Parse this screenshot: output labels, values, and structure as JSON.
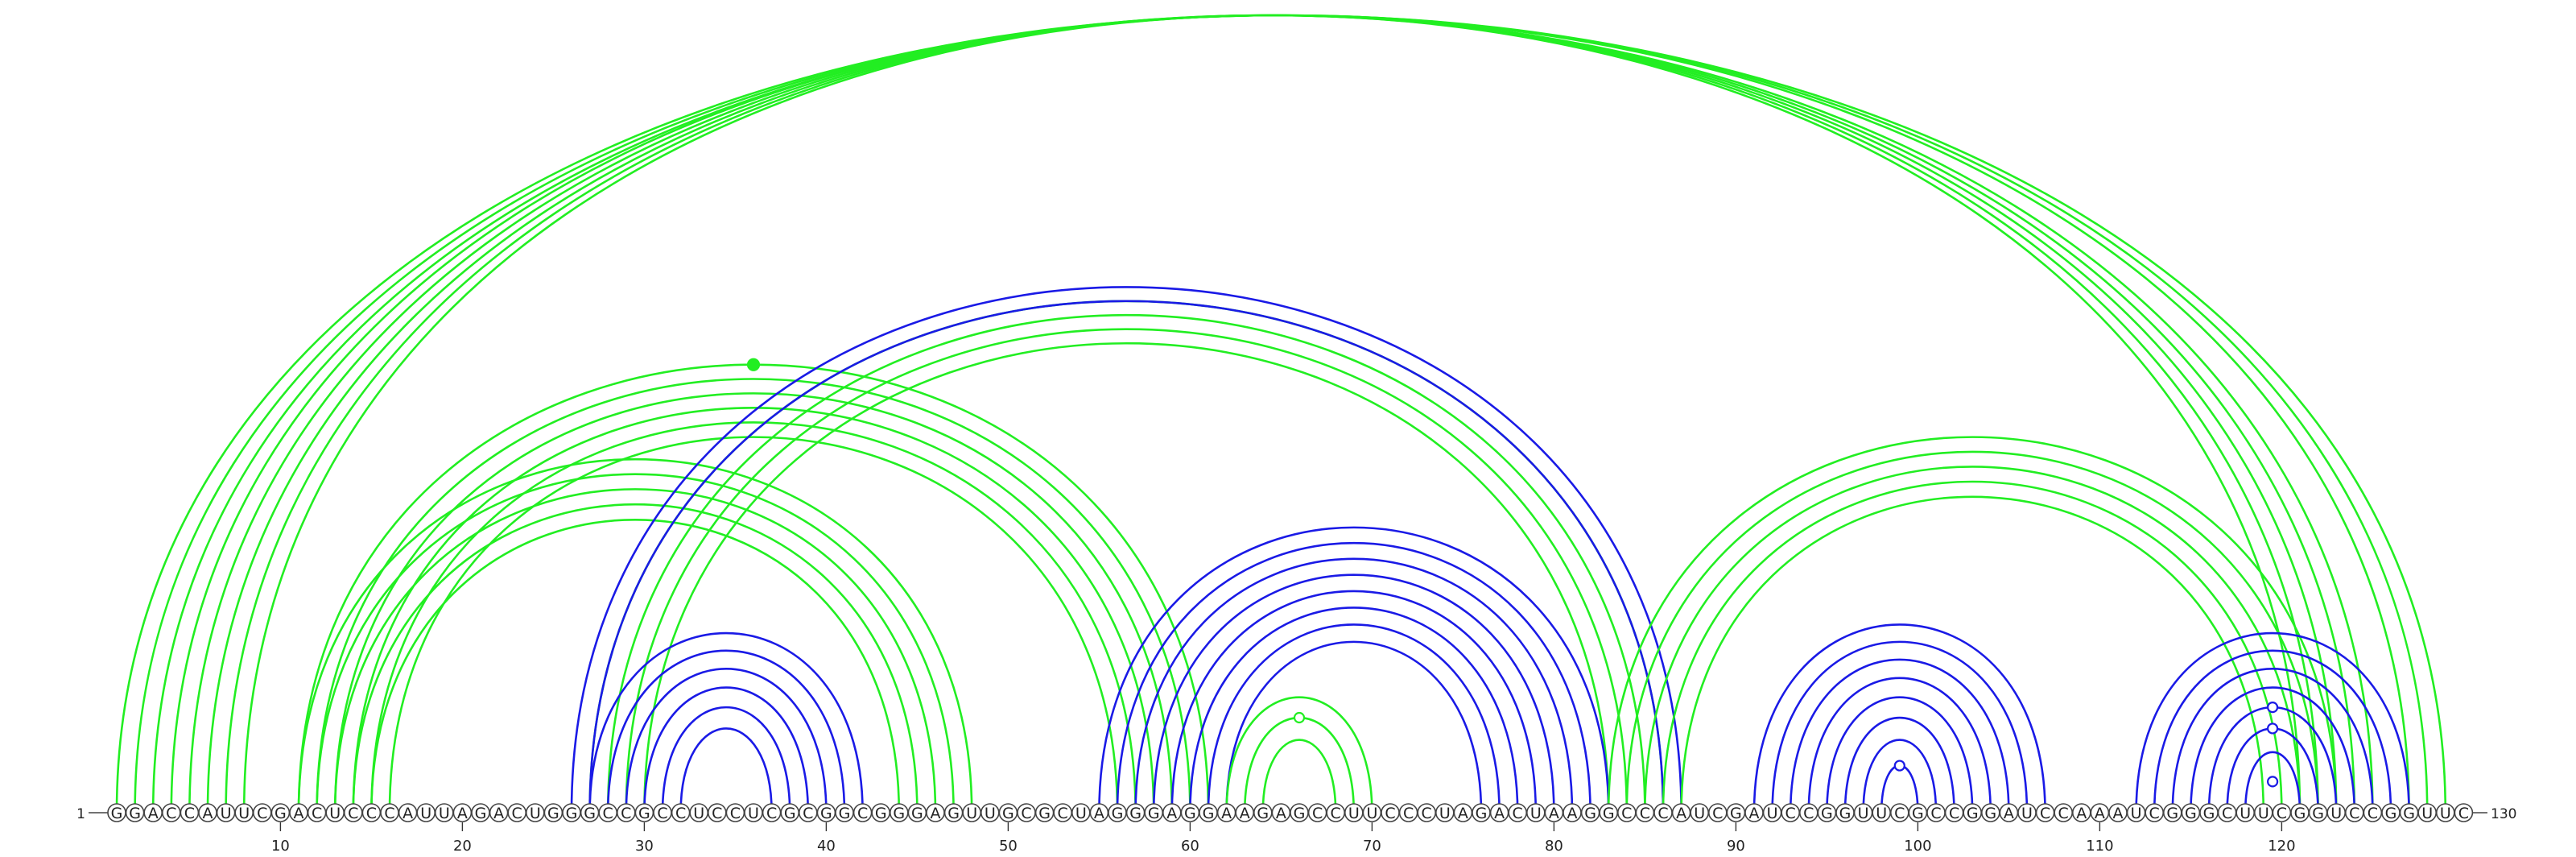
{
  "sequence": "GGACCAUUCGACUCCCAUUAGACUGGGCCGCCUCCUCGCGGCGGGAGUUGCGCUAGGGAGGAAGAGCCUUCCCUAGACUAAGGCCCAUCGAUCCGGUUCGCCGGAUCCAAAUCGGGCUUCGGUCCGGUUC",
  "start_label": "1",
  "end_label": "130",
  "ticks": [
    10,
    20,
    30,
    40,
    50,
    60,
    70,
    80,
    90,
    100,
    110,
    120
  ],
  "colors": {
    "green": "#22ee22",
    "blue": "#1a1ae6",
    "backbone": "#444444"
  },
  "arc_groups": [
    {
      "color": "green",
      "pairs": [
        [
          1,
          129
        ],
        [
          2,
          128
        ],
        [
          3,
          127
        ],
        [
          4,
          125
        ],
        [
          5,
          124
        ],
        [
          6,
          123
        ],
        [
          7,
          122
        ],
        [
          8,
          121
        ]
      ]
    },
    {
      "color": "green",
      "pairs": [
        [
          11,
          61
        ],
        [
          12,
          60
        ],
        [
          13,
          59
        ],
        [
          14,
          58
        ],
        [
          15,
          57
        ],
        [
          16,
          56
        ]
      ]
    },
    {
      "color": "green",
      "pairs": [
        [
          11,
          48
        ],
        [
          12,
          47
        ],
        [
          13,
          46
        ],
        [
          14,
          45
        ],
        [
          15,
          44
        ]
      ]
    },
    {
      "color": "green",
      "pairs": [
        [
          27,
          86
        ],
        [
          28,
          85
        ],
        [
          29,
          84
        ],
        [
          30,
          83
        ]
      ]
    },
    {
      "color": "blue",
      "pairs": [
        [
          26,
          87
        ],
        [
          27,
          86
        ]
      ]
    },
    {
      "color": "blue",
      "pairs": [
        [
          27,
          42
        ],
        [
          28,
          41
        ],
        [
          29,
          40
        ],
        [
          30,
          39
        ],
        [
          31,
          38
        ],
        [
          32,
          37
        ]
      ]
    },
    {
      "color": "blue",
      "pairs": [
        [
          55,
          83
        ],
        [
          56,
          82
        ],
        [
          57,
          81
        ],
        [
          58,
          80
        ],
        [
          59,
          79
        ],
        [
          60,
          78
        ],
        [
          61,
          77
        ],
        [
          62,
          76
        ]
      ]
    },
    {
      "color": "green",
      "pairs": [
        [
          62,
          70
        ],
        [
          63,
          69
        ],
        [
          64,
          68
        ]
      ]
    },
    {
      "color": "green",
      "pairs": [
        [
          83,
          123
        ],
        [
          84,
          122
        ],
        [
          85,
          121
        ],
        [
          86,
          120
        ],
        [
          87,
          119
        ]
      ]
    },
    {
      "color": "blue",
      "pairs": [
        [
          91,
          107
        ],
        [
          92,
          106
        ],
        [
          93,
          105
        ],
        [
          94,
          104
        ],
        [
          95,
          103
        ],
        [
          96,
          102
        ],
        [
          97,
          101
        ],
        [
          98,
          100
        ]
      ]
    },
    {
      "color": "blue",
      "pairs": [
        [
          112,
          127
        ],
        [
          113,
          126
        ],
        [
          114,
          125
        ],
        [
          115,
          124
        ],
        [
          116,
          123
        ],
        [
          117,
          122
        ],
        [
          118,
          121
        ]
      ]
    }
  ],
  "markers": [
    {
      "color": "green",
      "filled": true,
      "i": 11,
      "j": 61
    },
    {
      "color": "green",
      "filled": false,
      "i": 63,
      "j": 69
    },
    {
      "color": "blue",
      "filled": false,
      "i": 98,
      "j": 100
    },
    {
      "color": "blue",
      "filled": false,
      "i": 116,
      "j": 123
    },
    {
      "color": "blue",
      "filled": false,
      "i": 117,
      "j": 122
    },
    {
      "color": "blue",
      "filled": false,
      "i": 119,
      "j": 120
    }
  ]
}
